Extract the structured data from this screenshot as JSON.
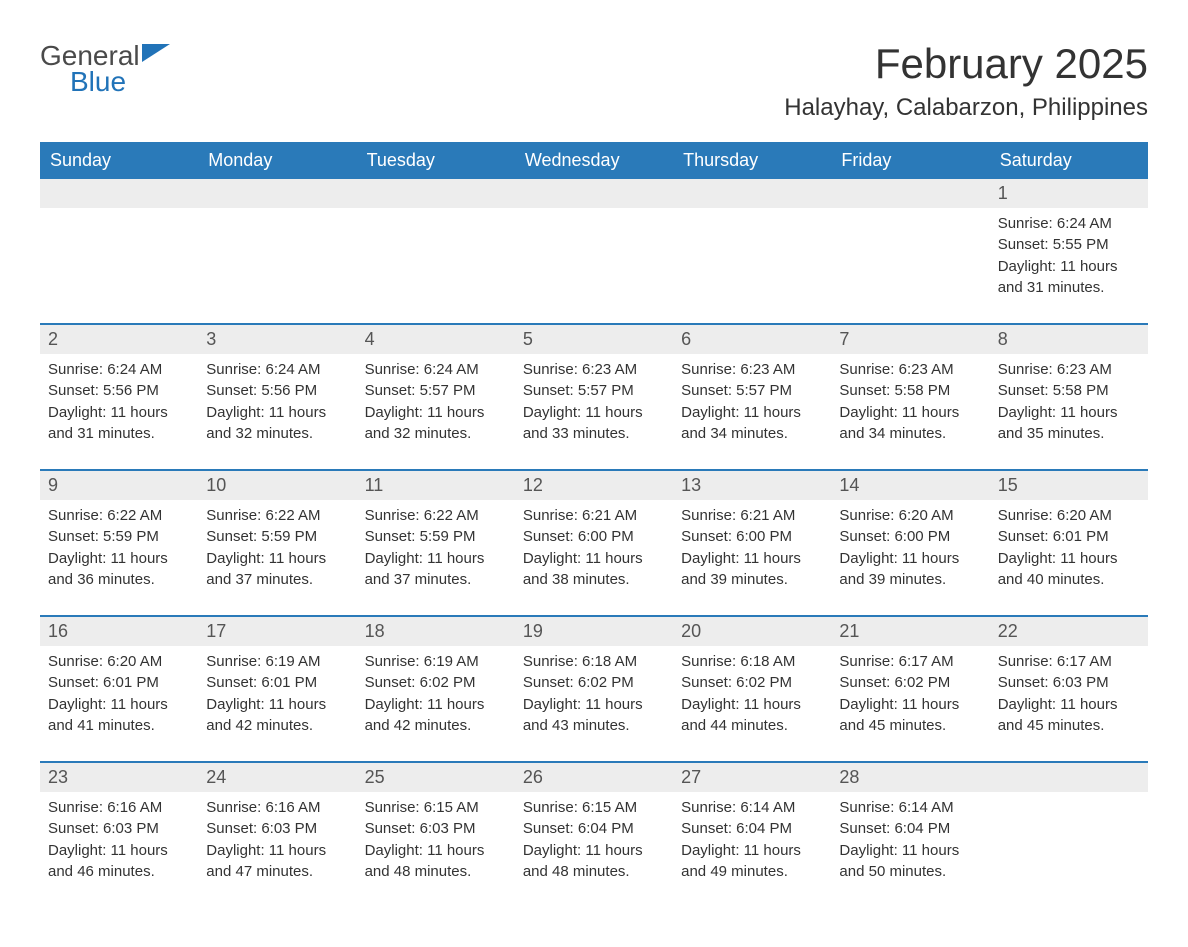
{
  "logo": {
    "part1": "General",
    "part2": "Blue"
  },
  "title": "February 2025",
  "location": "Halayhay, Calabarzon, Philippines",
  "columns": [
    "Sunday",
    "Monday",
    "Tuesday",
    "Wednesday",
    "Thursday",
    "Friday",
    "Saturday"
  ],
  "colors": {
    "header_bg": "#2a7ab9",
    "header_text": "#ffffff",
    "daynum_bg": "#ededed",
    "row_border": "#2a7ab9",
    "text": "#333333",
    "logo_blue": "#2173b8",
    "logo_gray": "#4a4a4a",
    "page_bg": "#ffffff"
  },
  "fonts": {
    "month_title_size": 42,
    "location_size": 24,
    "column_header_size": 18,
    "daynum_size": 18,
    "body_size": 15
  },
  "weeks": [
    [
      null,
      null,
      null,
      null,
      null,
      null,
      {
        "n": "1",
        "sunrise": "Sunrise: 6:24 AM",
        "sunset": "Sunset: 5:55 PM",
        "d1": "Daylight: 11 hours",
        "d2": "and 31 minutes."
      }
    ],
    [
      {
        "n": "2",
        "sunrise": "Sunrise: 6:24 AM",
        "sunset": "Sunset: 5:56 PM",
        "d1": "Daylight: 11 hours",
        "d2": "and 31 minutes."
      },
      {
        "n": "3",
        "sunrise": "Sunrise: 6:24 AM",
        "sunset": "Sunset: 5:56 PM",
        "d1": "Daylight: 11 hours",
        "d2": "and 32 minutes."
      },
      {
        "n": "4",
        "sunrise": "Sunrise: 6:24 AM",
        "sunset": "Sunset: 5:57 PM",
        "d1": "Daylight: 11 hours",
        "d2": "and 32 minutes."
      },
      {
        "n": "5",
        "sunrise": "Sunrise: 6:23 AM",
        "sunset": "Sunset: 5:57 PM",
        "d1": "Daylight: 11 hours",
        "d2": "and 33 minutes."
      },
      {
        "n": "6",
        "sunrise": "Sunrise: 6:23 AM",
        "sunset": "Sunset: 5:57 PM",
        "d1": "Daylight: 11 hours",
        "d2": "and 34 minutes."
      },
      {
        "n": "7",
        "sunrise": "Sunrise: 6:23 AM",
        "sunset": "Sunset: 5:58 PM",
        "d1": "Daylight: 11 hours",
        "d2": "and 34 minutes."
      },
      {
        "n": "8",
        "sunrise": "Sunrise: 6:23 AM",
        "sunset": "Sunset: 5:58 PM",
        "d1": "Daylight: 11 hours",
        "d2": "and 35 minutes."
      }
    ],
    [
      {
        "n": "9",
        "sunrise": "Sunrise: 6:22 AM",
        "sunset": "Sunset: 5:59 PM",
        "d1": "Daylight: 11 hours",
        "d2": "and 36 minutes."
      },
      {
        "n": "10",
        "sunrise": "Sunrise: 6:22 AM",
        "sunset": "Sunset: 5:59 PM",
        "d1": "Daylight: 11 hours",
        "d2": "and 37 minutes."
      },
      {
        "n": "11",
        "sunrise": "Sunrise: 6:22 AM",
        "sunset": "Sunset: 5:59 PM",
        "d1": "Daylight: 11 hours",
        "d2": "and 37 minutes."
      },
      {
        "n": "12",
        "sunrise": "Sunrise: 6:21 AM",
        "sunset": "Sunset: 6:00 PM",
        "d1": "Daylight: 11 hours",
        "d2": "and 38 minutes."
      },
      {
        "n": "13",
        "sunrise": "Sunrise: 6:21 AM",
        "sunset": "Sunset: 6:00 PM",
        "d1": "Daylight: 11 hours",
        "d2": "and 39 minutes."
      },
      {
        "n": "14",
        "sunrise": "Sunrise: 6:20 AM",
        "sunset": "Sunset: 6:00 PM",
        "d1": "Daylight: 11 hours",
        "d2": "and 39 minutes."
      },
      {
        "n": "15",
        "sunrise": "Sunrise: 6:20 AM",
        "sunset": "Sunset: 6:01 PM",
        "d1": "Daylight: 11 hours",
        "d2": "and 40 minutes."
      }
    ],
    [
      {
        "n": "16",
        "sunrise": "Sunrise: 6:20 AM",
        "sunset": "Sunset: 6:01 PM",
        "d1": "Daylight: 11 hours",
        "d2": "and 41 minutes."
      },
      {
        "n": "17",
        "sunrise": "Sunrise: 6:19 AM",
        "sunset": "Sunset: 6:01 PM",
        "d1": "Daylight: 11 hours",
        "d2": "and 42 minutes."
      },
      {
        "n": "18",
        "sunrise": "Sunrise: 6:19 AM",
        "sunset": "Sunset: 6:02 PM",
        "d1": "Daylight: 11 hours",
        "d2": "and 42 minutes."
      },
      {
        "n": "19",
        "sunrise": "Sunrise: 6:18 AM",
        "sunset": "Sunset: 6:02 PM",
        "d1": "Daylight: 11 hours",
        "d2": "and 43 minutes."
      },
      {
        "n": "20",
        "sunrise": "Sunrise: 6:18 AM",
        "sunset": "Sunset: 6:02 PM",
        "d1": "Daylight: 11 hours",
        "d2": "and 44 minutes."
      },
      {
        "n": "21",
        "sunrise": "Sunrise: 6:17 AM",
        "sunset": "Sunset: 6:02 PM",
        "d1": "Daylight: 11 hours",
        "d2": "and 45 minutes."
      },
      {
        "n": "22",
        "sunrise": "Sunrise: 6:17 AM",
        "sunset": "Sunset: 6:03 PM",
        "d1": "Daylight: 11 hours",
        "d2": "and 45 minutes."
      }
    ],
    [
      {
        "n": "23",
        "sunrise": "Sunrise: 6:16 AM",
        "sunset": "Sunset: 6:03 PM",
        "d1": "Daylight: 11 hours",
        "d2": "and 46 minutes."
      },
      {
        "n": "24",
        "sunrise": "Sunrise: 6:16 AM",
        "sunset": "Sunset: 6:03 PM",
        "d1": "Daylight: 11 hours",
        "d2": "and 47 minutes."
      },
      {
        "n": "25",
        "sunrise": "Sunrise: 6:15 AM",
        "sunset": "Sunset: 6:03 PM",
        "d1": "Daylight: 11 hours",
        "d2": "and 48 minutes."
      },
      {
        "n": "26",
        "sunrise": "Sunrise: 6:15 AM",
        "sunset": "Sunset: 6:04 PM",
        "d1": "Daylight: 11 hours",
        "d2": "and 48 minutes."
      },
      {
        "n": "27",
        "sunrise": "Sunrise: 6:14 AM",
        "sunset": "Sunset: 6:04 PM",
        "d1": "Daylight: 11 hours",
        "d2": "and 49 minutes."
      },
      {
        "n": "28",
        "sunrise": "Sunrise: 6:14 AM",
        "sunset": "Sunset: 6:04 PM",
        "d1": "Daylight: 11 hours",
        "d2": "and 50 minutes."
      },
      null
    ]
  ]
}
